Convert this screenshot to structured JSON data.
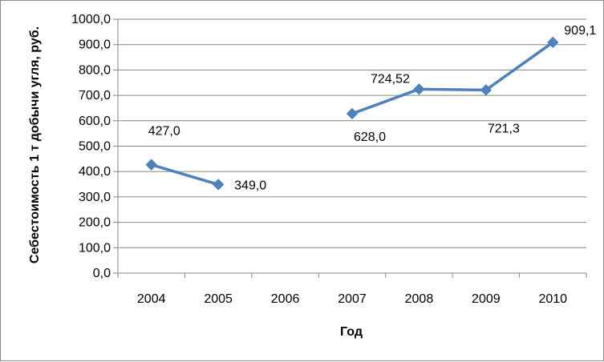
{
  "chart_data": {
    "type": "line",
    "categories": [
      "2004",
      "2005",
      "2006",
      "2007",
      "2008",
      "2009",
      "2010"
    ],
    "values": [
      427.0,
      349.0,
      null,
      628.0,
      724.52,
      721.3,
      909.1
    ],
    "data_labels": [
      "427,0",
      "349,0",
      "",
      "628,0",
      "724,52",
      "721,3",
      "909,1"
    ],
    "xlabel": "Год",
    "ylabel": "Себестоимость 1 т добычи угля, руб.",
    "ylim": [
      0,
      1000
    ],
    "yticks": [
      0,
      100,
      200,
      300,
      400,
      500,
      600,
      700,
      800,
      900,
      1000
    ],
    "ytick_labels": [
      "0,0",
      "100,0",
      "200,0",
      "300,0",
      "400,0",
      "500,0",
      "600,0",
      "700,0",
      "800,0",
      "900,0",
      "1000,0"
    ],
    "grid": "horizontal",
    "legend": "none",
    "marker": "diamond",
    "series_color": "#4f81bd"
  }
}
